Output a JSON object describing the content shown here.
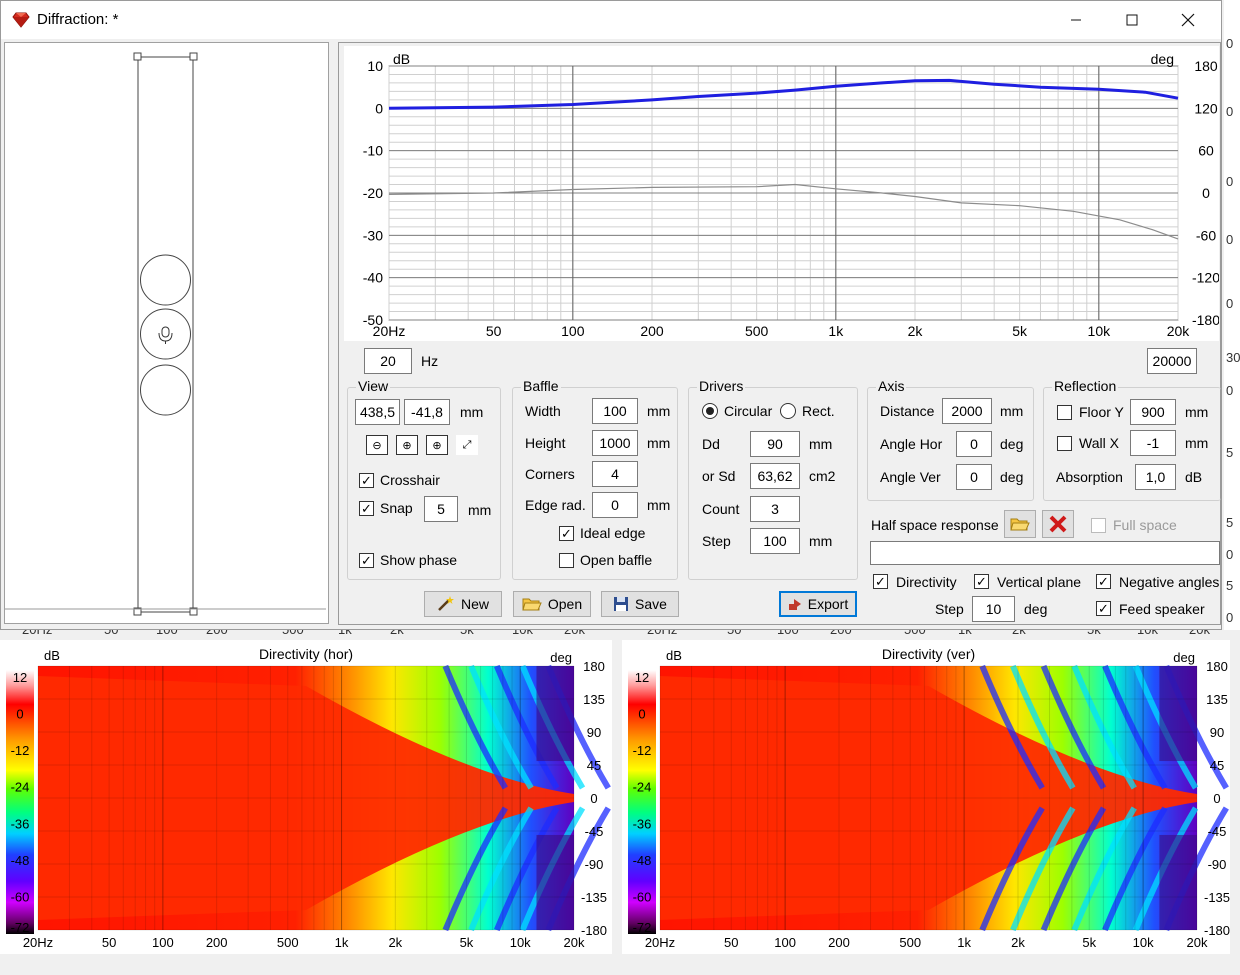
{
  "window": {
    "title": "Diffraction: *",
    "logo_icon": "ruby-gem-icon",
    "minimize_icon": "minimize-icon",
    "maximize_icon": "maximize-icon",
    "close_icon": "close-icon"
  },
  "background_labels": {
    "right_edge": [
      "0",
      "0",
      "0",
      "0",
      "0",
      "30",
      "0",
      "5",
      "5",
      "0",
      "5",
      "0",
      "5",
      "30"
    ],
    "ticks_left": [
      "20Hz",
      "50",
      "100",
      "200",
      "500",
      "1k",
      "2k",
      "5k",
      "10k",
      "20k"
    ],
    "ticks_right": [
      "20Hz",
      "50",
      "100",
      "200",
      "500",
      "1k",
      "2k",
      "5k",
      "10k",
      "20k"
    ]
  },
  "baffle_preview": {
    "center_icon": "microphone-icon"
  },
  "response_chart": {
    "chart_data": {
      "type": "line",
      "title": "",
      "y_left_unit": "dB",
      "y_right_unit": "deg",
      "x_scale": "log",
      "xlim": [
        20,
        20000
      ],
      "ylim": [
        -50,
        10
      ],
      "y2lim": [
        -180,
        180
      ],
      "x_ticks": [
        20,
        50,
        100,
        200,
        500,
        1000,
        2000,
        5000,
        10000,
        20000
      ],
      "x_tick_labels": [
        "20Hz",
        "50",
        "100",
        "200",
        "500",
        "1k",
        "2k",
        "5k",
        "10k",
        "20k"
      ],
      "y_ticks": [
        10,
        0,
        -10,
        -20,
        -30,
        -40,
        -50
      ],
      "y2_ticks": [
        180,
        120,
        60,
        0,
        -60,
        -120,
        -180
      ],
      "grid": true,
      "series": [
        {
          "color": "#1f1fe0",
          "axis": "left",
          "x": [
            20,
            50,
            100,
            200,
            300,
            500,
            700,
            1000,
            1500,
            2000,
            2700,
            4000,
            6000,
            10000,
            15000,
            20000
          ],
          "y": [
            0,
            0.3,
            0.9,
            2.0,
            2.8,
            3.6,
            4.3,
            5.2,
            6.0,
            6.5,
            6.6,
            5.7,
            5.0,
            4.5,
            3.8,
            2.4
          ]
        },
        {
          "color": "#8c8c8c",
          "axis": "right",
          "x": [
            20,
            50,
            100,
            200,
            500,
            700,
            1000,
            1500,
            2000,
            3000,
            5000,
            8000,
            12000,
            16000,
            20000
          ],
          "y": [
            -2,
            0,
            5,
            8,
            9,
            12,
            6,
            0,
            -5,
            -14,
            -18,
            -26,
            -38,
            -52,
            -65
          ]
        }
      ]
    }
  },
  "freq_range": {
    "min": "20",
    "unit": "Hz",
    "max": "20000"
  },
  "view": {
    "title": "View",
    "x": "438,5",
    "y": "-41,8",
    "unit": "mm",
    "zoom_out_icon": "zoom-out-icon",
    "zoom_fit_icon": "zoom-fit-icon",
    "zoom_in_icon": "zoom-in-icon",
    "fullscreen_icon": "fullscreen-icon",
    "crosshair": "Crosshair",
    "snap": "Snap",
    "snap_value": "5",
    "snap_unit": "mm",
    "show_phase": "Show phase"
  },
  "baffle": {
    "title": "Baffle",
    "width_label": "Width",
    "width": "100",
    "height_label": "Height",
    "height": "1000",
    "corners_label": "Corners",
    "corners": "4",
    "edge_label": "Edge rad.",
    "edge": "0",
    "unit": "mm",
    "ideal_edge": "Ideal edge",
    "open_baffle": "Open baffle"
  },
  "drivers": {
    "title": "Drivers",
    "circular": "Circular",
    "rect": "Rect.",
    "dd_label": "Dd",
    "dd": "90",
    "dd_unit": "mm",
    "sd_label": "or Sd",
    "sd": "63,62",
    "sd_unit": "cm2",
    "count_label": "Count",
    "count": "3",
    "step_label": "Step",
    "step": "100",
    "step_unit": "mm"
  },
  "axis": {
    "title": "Axis",
    "distance_label": "Distance",
    "distance": "2000",
    "distance_unit": "mm",
    "hor_label": "Angle Hor",
    "hor": "0",
    "ver_label": "Angle Ver",
    "ver": "0",
    "deg": "deg"
  },
  "reflection": {
    "title": "Reflection",
    "floor_label": "Floor Y",
    "floor": "900",
    "wall_label": "Wall  X",
    "wall": "-1",
    "unit": "mm",
    "absorption_label": "Absorption",
    "absorption": "1,0",
    "absorption_unit": "dB"
  },
  "half_space": {
    "label": "Half space response",
    "open_icon": "folder-open-icon",
    "delete_icon": "red-x-icon",
    "full_space": "Full space",
    "path": ""
  },
  "directivity_opts": {
    "directivity": "Directivity",
    "vertical": "Vertical plane",
    "negative": "Negative angles",
    "feed": "Feed speaker",
    "step_label": "Step",
    "step": "10",
    "step_unit": "deg"
  },
  "buttons": {
    "new": "New",
    "open": "Open",
    "save": "Save",
    "export": "Export",
    "new_icon": "magic-wand-icon",
    "open_icon": "folder-open-icon",
    "save_icon": "floppy-disk-icon",
    "export_icon": "export-arrow-icon"
  },
  "dir_hor": {
    "title": "Directivity (hor)",
    "dB": "dB",
    "deg": "deg",
    "scale_labels": [
      "12",
      "0",
      "-12",
      "-24",
      "-36",
      "-48",
      "-60",
      "-72"
    ],
    "angle_labels": [
      "180",
      "135",
      "90",
      "45",
      "0",
      "-45",
      "-90",
      "-135",
      "-180"
    ],
    "x_labels": [
      "20Hz",
      "50",
      "100",
      "200",
      "500",
      "1k",
      "2k",
      "5k",
      "10k",
      "20k"
    ]
  },
  "dir_ver": {
    "title": "Directivity (ver)",
    "dB": "dB",
    "deg": "deg",
    "scale_labels": [
      "12",
      "0",
      "-12",
      "-24",
      "-36",
      "-48",
      "-60",
      "-72"
    ],
    "angle_labels": [
      "180",
      "135",
      "90",
      "45",
      "0",
      "-45",
      "-90",
      "-135",
      "-180"
    ],
    "x_labels": [
      "20Hz",
      "50",
      "100",
      "200",
      "500",
      "1k",
      "2k",
      "5k",
      "10k",
      "20k"
    ]
  }
}
